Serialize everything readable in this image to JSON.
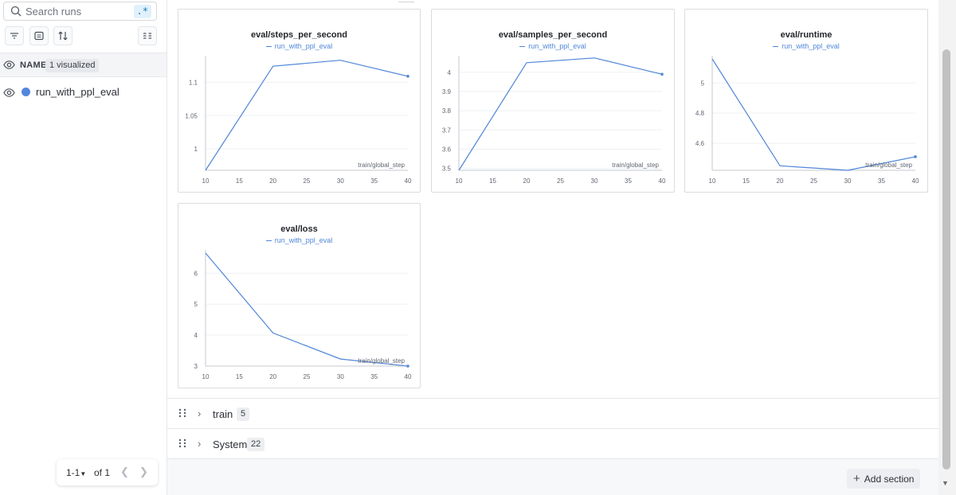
{
  "sidebar": {
    "search_placeholder": "Search runs",
    "regex_toggle": ".*",
    "header_label": "NAME",
    "visualized_badge": "1 visualized",
    "runs": [
      {
        "name": "run_with_ppl_eval",
        "color": "#5387dd"
      }
    ],
    "pager": {
      "range": "1-1",
      "of": "of 1"
    }
  },
  "panels": [
    {
      "title": "eval/steps_per_second",
      "legend": "run_with_ppl_eval",
      "xlabel": "train/global_step",
      "x_ticks": [
        "10",
        "15",
        "20",
        "25",
        "30",
        "35",
        "40"
      ],
      "y_ticks": [
        {
          "v": 1,
          "t": "1"
        },
        {
          "v": 1.05,
          "t": "1.05"
        },
        {
          "v": 1.1,
          "t": "1.1"
        }
      ],
      "xlim": [
        10,
        40
      ],
      "ylim": [
        0.968,
        1.135
      ],
      "points": [
        [
          10,
          0.968
        ],
        [
          20,
          1.124
        ],
        [
          30,
          1.133
        ],
        [
          40,
          1.109
        ]
      ]
    },
    {
      "title": "eval/samples_per_second",
      "legend": "run_with_ppl_eval",
      "xlabel": "train/global_step",
      "x_ticks": [
        "10",
        "15",
        "20",
        "25",
        "30",
        "35",
        "40"
      ],
      "y_ticks": [
        {
          "v": 3.5,
          "t": "3.5"
        },
        {
          "v": 3.6,
          "t": "3.6"
        },
        {
          "v": 3.7,
          "t": "3.7"
        },
        {
          "v": 3.8,
          "t": "3.8"
        },
        {
          "v": 3.9,
          "t": "3.9"
        },
        {
          "v": 4,
          "t": "4"
        }
      ],
      "xlim": [
        10,
        40
      ],
      "ylim": [
        3.49,
        4.07
      ],
      "points": [
        [
          10,
          3.49
        ],
        [
          20,
          4.05
        ],
        [
          30,
          4.075
        ],
        [
          40,
          3.99
        ]
      ]
    },
    {
      "title": "eval/runtime",
      "legend": "run_with_ppl_eval",
      "xlabel": "train/global_step",
      "x_ticks": [
        "10",
        "15",
        "20",
        "25",
        "30",
        "35",
        "40"
      ],
      "y_ticks": [
        {
          "v": 4.6,
          "t": "4.6"
        },
        {
          "v": 4.8,
          "t": "4.8"
        },
        {
          "v": 5,
          "t": "5"
        }
      ],
      "xlim": [
        10,
        40
      ],
      "ylim": [
        4.42,
        5.16
      ],
      "points": [
        [
          10,
          5.16
        ],
        [
          20,
          4.45
        ],
        [
          30,
          4.42
        ],
        [
          40,
          4.51
        ]
      ]
    },
    {
      "title": "eval/loss",
      "legend": "run_with_ppl_eval",
      "xlabel": "train/global_step",
      "x_ticks": [
        "10",
        "15",
        "20",
        "25",
        "30",
        "35",
        "40"
      ],
      "y_ticks": [
        {
          "v": 3,
          "t": "3"
        },
        {
          "v": 4,
          "t": "4"
        },
        {
          "v": 5,
          "t": "5"
        },
        {
          "v": 6,
          "t": "6"
        }
      ],
      "xlim": [
        10,
        40
      ],
      "ylim": [
        3.0,
        6.65
      ],
      "points": [
        [
          10,
          6.65
        ],
        [
          20,
          4.07
        ],
        [
          30,
          3.23
        ],
        [
          40,
          3.0
        ]
      ]
    }
  ],
  "sections": [
    {
      "name": "train",
      "count": "5"
    },
    {
      "name": "System",
      "count": "22"
    }
  ],
  "add_section_label": "Add section",
  "colors": {
    "series": "#4f86d8",
    "accent": "#1c7bb6"
  }
}
